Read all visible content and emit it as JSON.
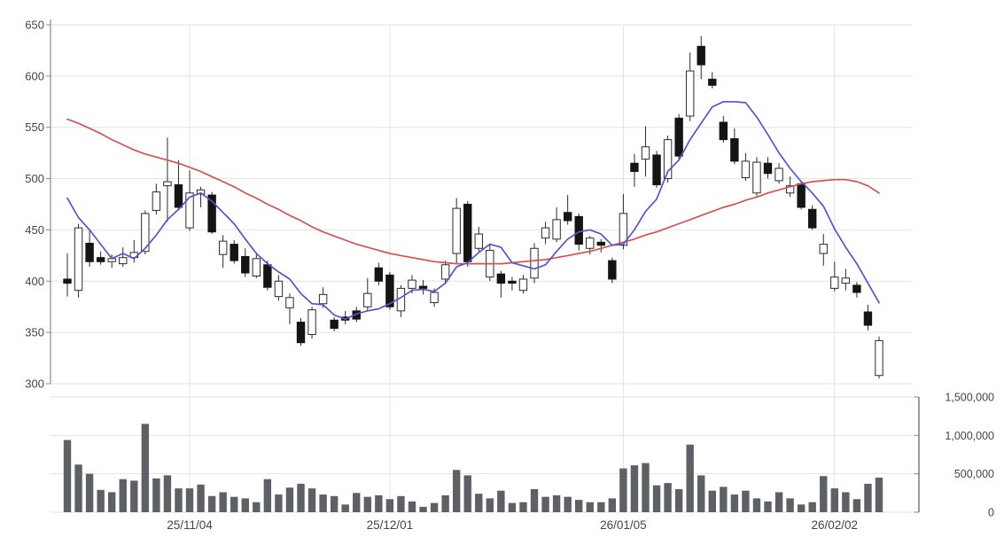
{
  "chart_data": {
    "type": "candlestick",
    "title": "",
    "x_labels": [
      {
        "index": 11,
        "label": "25/11/04"
      },
      {
        "index": 29,
        "label": "25/12/01"
      },
      {
        "index": 50,
        "label": "26/01/05"
      },
      {
        "index": 69,
        "label": "26/02/02"
      }
    ],
    "price_axis": {
      "min": 300,
      "max": 650,
      "ticks": [
        650,
        600,
        550,
        500,
        450,
        400,
        350,
        300
      ]
    },
    "volume_axis": {
      "min": 0,
      "max": 1500000,
      "ticks": [
        1500000,
        1000000,
        500000,
        0
      ],
      "tick_labels": [
        "1,500,000",
        "1,000,000",
        "500,000",
        "0"
      ]
    },
    "series": {
      "candles": {
        "open": [
          402,
          391,
          437,
          423,
          419,
          417,
          423,
          429,
          469,
          493,
          494,
          452,
          485,
          484,
          426,
          436,
          424,
          405,
          416,
          385,
          374,
          360,
          348,
          378,
          362,
          365,
          371,
          375,
          413,
          406,
          371,
          393,
          395,
          379,
          402,
          427,
          475,
          432,
          404,
          407,
          400,
          391,
          403,
          442,
          441,
          467,
          463,
          432,
          438,
          420,
          435,
          515,
          519,
          523,
          500,
          559,
          561,
          629,
          597,
          555,
          539,
          501,
          486,
          515,
          498,
          486,
          495,
          470,
          427,
          393,
          398,
          396,
          370,
          308
        ],
        "high": [
          427,
          456,
          450,
          429,
          426,
          433,
          440,
          469,
          495,
          540,
          518,
          508,
          492,
          487,
          445,
          440,
          432,
          427,
          420,
          406,
          388,
          364,
          375,
          394,
          365,
          371,
          375,
          403,
          418,
          409,
          396,
          406,
          401,
          393,
          420,
          481,
          478,
          453,
          436,
          410,
          404,
          406,
          437,
          458,
          472,
          484,
          466,
          444,
          441,
          423,
          485,
          524,
          551,
          527,
          542,
          563,
          623,
          639,
          604,
          561,
          549,
          525,
          521,
          521,
          515,
          502,
          498,
          474,
          446,
          419,
          412,
          399,
          377,
          346
        ],
        "low": [
          385,
          384,
          414,
          416,
          413,
          414,
          418,
          426,
          465,
          458,
          469,
          449,
          472,
          446,
          413,
          417,
          404,
          403,
          391,
          381,
          358,
          337,
          344,
          374,
          351,
          358,
          360,
          371,
          396,
          372,
          365,
          388,
          387,
          375,
          398,
          417,
          414,
          429,
          400,
          384,
          391,
          388,
          398,
          436,
          438,
          455,
          430,
          426,
          428,
          398,
          431,
          492,
          502,
          491,
          496,
          518,
          556,
          597,
          588,
          535,
          514,
          498,
          483,
          500,
          495,
          482,
          470,
          450,
          415,
          390,
          391,
          384,
          352,
          305
        ],
        "close": [
          398,
          452,
          419,
          419,
          422,
          423,
          428,
          466,
          487,
          497,
          472,
          486,
          489,
          448,
          439,
          420,
          408,
          422,
          394,
          400,
          384,
          340,
          372,
          387,
          354,
          362,
          363,
          388,
          400,
          375,
          393,
          401,
          393,
          389,
          416,
          471,
          419,
          446,
          430,
          398,
          398,
          402,
          432,
          452,
          460,
          459,
          436,
          442,
          435,
          402,
          466,
          507,
          531,
          494,
          538,
          522,
          605,
          611,
          591,
          538,
          517,
          517,
          516,
          505,
          510,
          493,
          472,
          452,
          436,
          404,
          403,
          389,
          357,
          342
        ]
      },
      "volume": [
        940000,
        620000,
        500000,
        290000,
        260000,
        430000,
        410000,
        1150000,
        440000,
        480000,
        310000,
        310000,
        360000,
        210000,
        260000,
        200000,
        180000,
        130000,
        430000,
        230000,
        320000,
        370000,
        310000,
        230000,
        210000,
        100000,
        250000,
        200000,
        220000,
        170000,
        210000,
        140000,
        70000,
        120000,
        220000,
        550000,
        480000,
        240000,
        180000,
        280000,
        120000,
        130000,
        300000,
        200000,
        220000,
        200000,
        160000,
        130000,
        130000,
        180000,
        570000,
        610000,
        640000,
        350000,
        380000,
        300000,
        880000,
        480000,
        280000,
        330000,
        230000,
        280000,
        180000,
        140000,
        260000,
        180000,
        100000,
        130000,
        470000,
        310000,
        260000,
        170000,
        370000,
        450000
      ],
      "ma_short": {
        "name": "short-moving-average",
        "color": "#5456c8",
        "values": [
          481,
          462,
          450,
          436,
          422,
          427,
          422,
          432,
          445,
          460,
          470,
          482,
          486,
          478,
          467,
          456,
          441,
          427,
          417,
          409,
          402,
          388,
          378,
          377,
          367,
          363,
          368,
          371,
          373,
          378,
          384,
          391,
          392,
          390,
          398,
          414,
          418,
          428,
          436,
          433,
          418,
          415,
          412,
          416,
          429,
          441,
          448,
          450,
          446,
          435,
          436,
          450,
          468,
          480,
          507,
          518,
          538,
          554,
          570,
          575,
          575,
          574,
          560,
          543,
          525,
          510,
          497,
          486,
          473,
          451,
          433,
          417,
          398,
          379
        ]
      },
      "ma_long": {
        "name": "long-moving-average",
        "color": "#d65252",
        "values": [
          558,
          554,
          549,
          544,
          538,
          533,
          528,
          524,
          521,
          518,
          515,
          511,
          507,
          502,
          497,
          492,
          486,
          481,
          475,
          470,
          464,
          459,
          453,
          448,
          444,
          440,
          436,
          433,
          430,
          427,
          425,
          423,
          421,
          419,
          418,
          417,
          417,
          417,
          417,
          417,
          418,
          419,
          420,
          421,
          423,
          425,
          427,
          429,
          432,
          435,
          438,
          441,
          445,
          448,
          452,
          456,
          460,
          464,
          468,
          472,
          475,
          479,
          482,
          486,
          489,
          492,
          495,
          497,
          498,
          499,
          499,
          497,
          493,
          486
        ]
      }
    },
    "colors": {
      "background": "#ffffff",
      "up_candle_fill": "#ffffff",
      "up_candle_stroke": "#2b2b2b",
      "down_candle_fill": "#141414",
      "wick": "#2b2b2b",
      "volume_bar": "#5d6165",
      "grid": "#e2e2e2",
      "axis": "#8a8a8a",
      "text": "#454545"
    },
    "layout_hints": {
      "grid": "on",
      "legend": "none",
      "volume_panel": "bottom"
    }
  }
}
